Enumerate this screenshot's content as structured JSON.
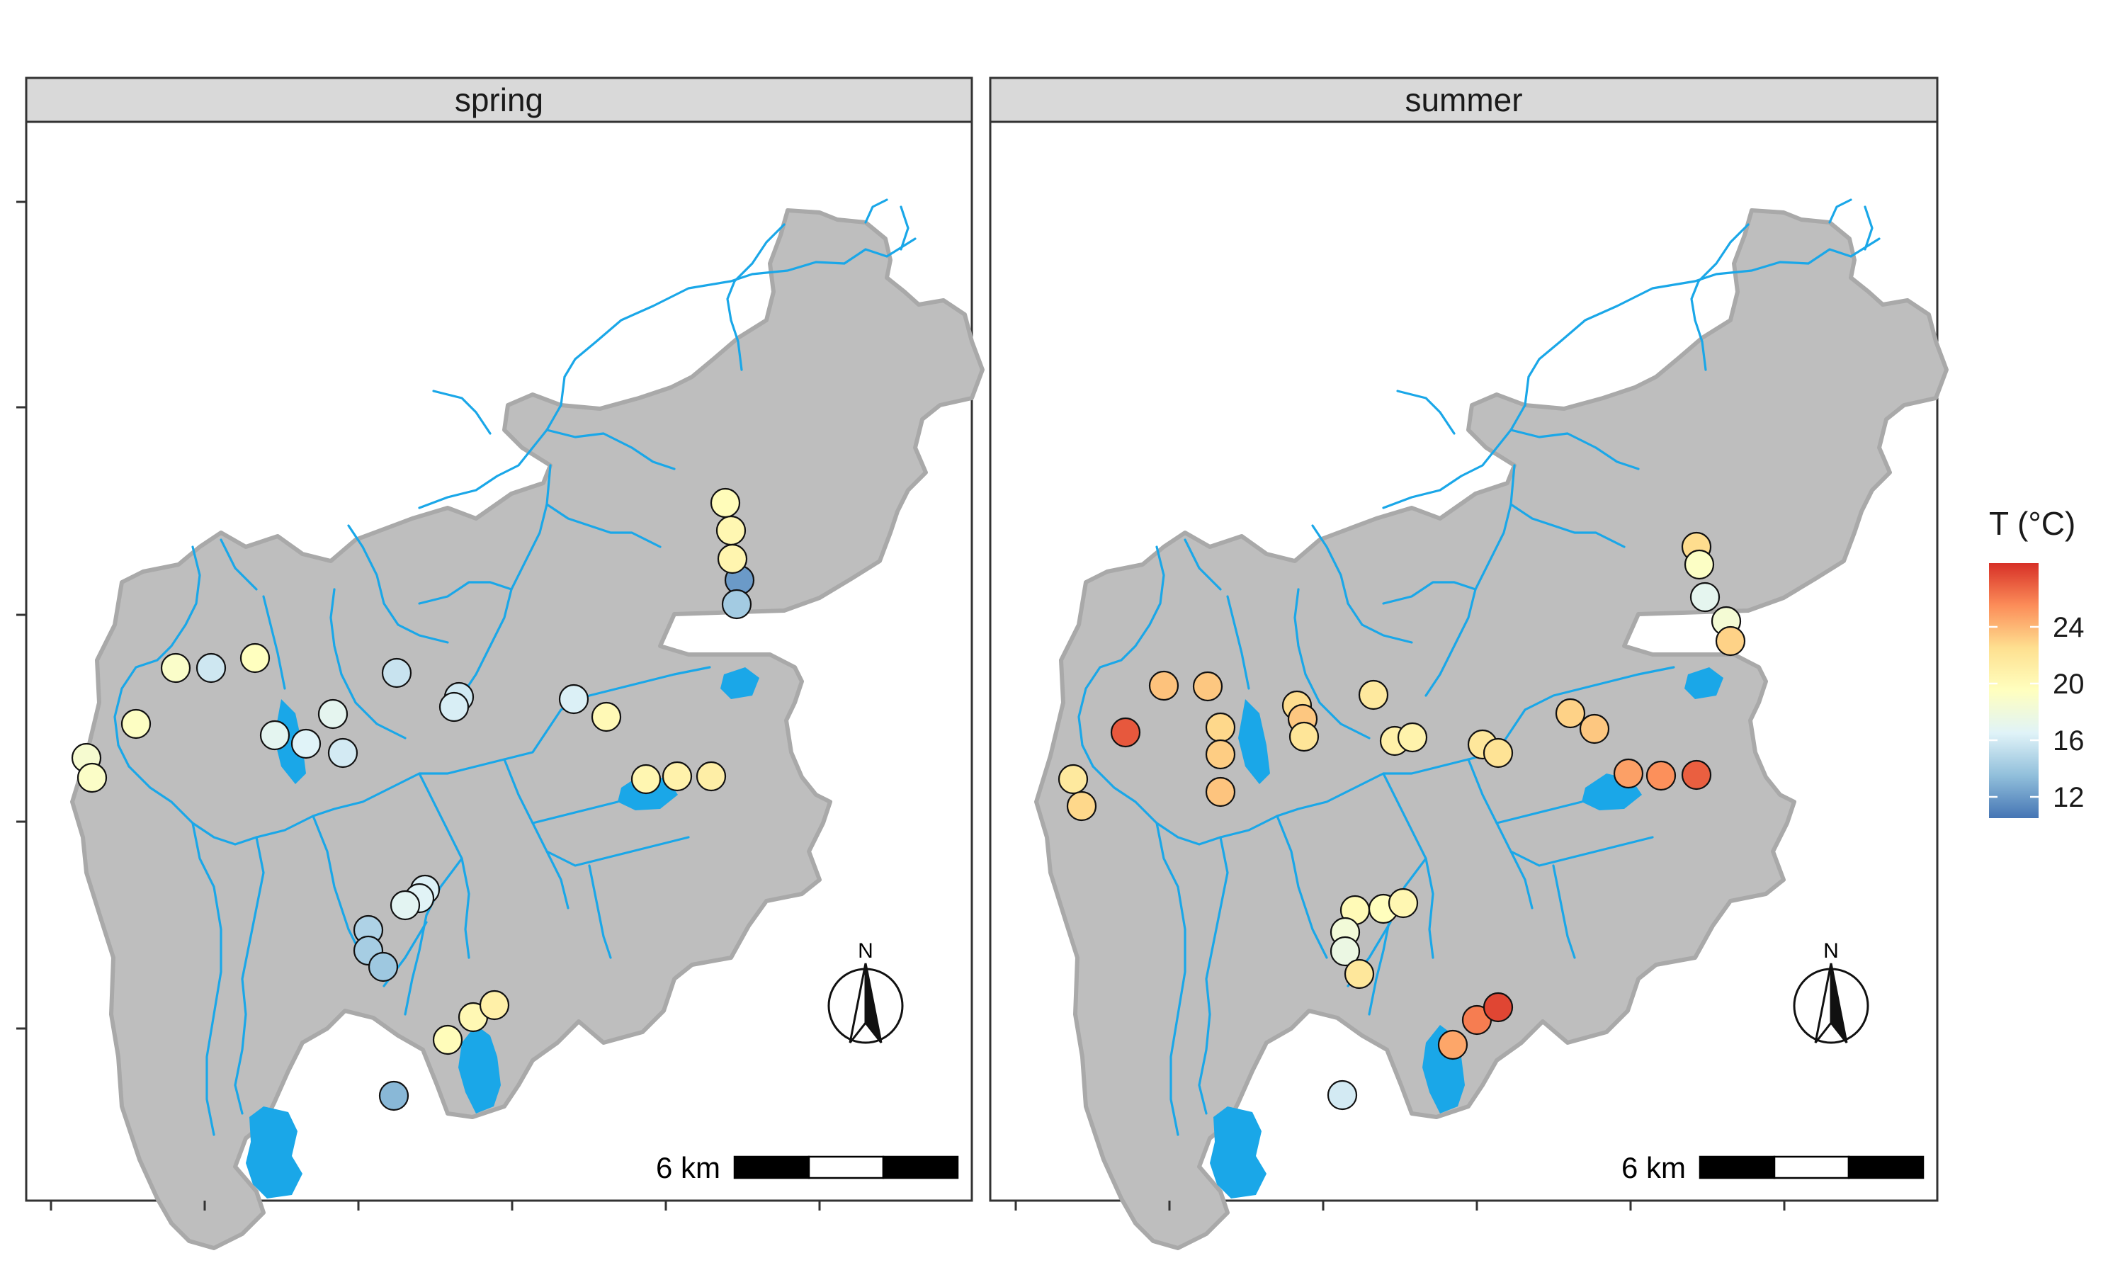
{
  "panels": [
    {
      "label": "spring",
      "sites": [
        {
          "id": 1,
          "t": 18.6
        },
        {
          "id": 2,
          "t": 19.1
        },
        {
          "id": 3,
          "t": 19.3
        },
        {
          "id": 4,
          "t": 19.0
        },
        {
          "id": 5,
          "t": 19.5
        },
        {
          "id": 6,
          "t": 12.0
        },
        {
          "id": 7,
          "t": 14.2
        },
        {
          "id": 8,
          "t": 15.8
        },
        {
          "id": 9,
          "t": 16.9
        },
        {
          "id": 10,
          "t": 16.5
        },
        {
          "id": 11,
          "t": 17.0
        },
        {
          "id": 12,
          "t": 16.0
        },
        {
          "id": 13,
          "t": 15.6
        },
        {
          "id": 14,
          "t": 15.9
        },
        {
          "id": 15,
          "t": 16.2
        },
        {
          "id": 16,
          "t": 16.3
        },
        {
          "id": 17,
          "t": 20.1
        },
        {
          "id": 18,
          "t": 20.4
        },
        {
          "id": 19,
          "t": 20.8
        },
        {
          "id": 20,
          "t": 21.1
        },
        {
          "id": 21,
          "t": 19.8
        },
        {
          "id": 22,
          "t": 20.3
        },
        {
          "id": 23,
          "t": 20.5
        },
        {
          "id": 24,
          "t": 16.4
        },
        {
          "id": 25,
          "t": 16.6
        },
        {
          "id": 26,
          "t": 16.8
        },
        {
          "id": 27,
          "t": 14.6
        },
        {
          "id": 28,
          "t": 14.3
        },
        {
          "id": 29,
          "t": 14.0
        },
        {
          "id": 30,
          "t": 19.8
        },
        {
          "id": 31,
          "t": 20.2
        },
        {
          "id": 32,
          "t": 21.0
        },
        {
          "id": 33,
          "t": 13.2
        }
      ]
    },
    {
      "label": "summer",
      "sites": [
        {
          "id": 1,
          "t": 21.6
        },
        {
          "id": 2,
          "t": 22.8
        },
        {
          "id": 3,
          "t": 27.2
        },
        {
          "id": 4,
          "t": 23.6
        },
        {
          "id": 5,
          "t": 23.4
        },
        {
          "id": 6,
          "t": 22.6
        },
        {
          "id": 7,
          "t": 19.2
        },
        {
          "id": 8,
          "t": 17.0
        },
        {
          "id": 9,
          "t": 18.4
        },
        {
          "id": 10,
          "t": 23.0
        },
        {
          "id": 11,
          "t": 22.8
        },
        {
          "id": 12,
          "t": 23.2
        },
        {
          "id": 13,
          "t": 23.5
        },
        {
          "id": 14,
          "t": 22.6
        },
        {
          "id": 15,
          "t": 23.4
        },
        {
          "id": 16,
          "t": 22.0
        },
        {
          "id": 17,
          "t": 21.6
        },
        {
          "id": 18,
          "t": 21.0
        },
        {
          "id": 19,
          "t": 20.7
        },
        {
          "id": 20,
          "t": 21.8
        },
        {
          "id": 21,
          "t": 22.2
        },
        {
          "id": 22,
          "t": 23.0
        },
        {
          "id": 23,
          "t": 23.4
        },
        {
          "id": 24,
          "t": 24.8
        },
        {
          "id": 25,
          "t": 25.4
        },
        {
          "id": 26,
          "t": 27.0
        },
        {
          "id": 27,
          "t": 20.0
        },
        {
          "id": 28,
          "t": 19.6
        },
        {
          "id": 29,
          "t": 20.3
        },
        {
          "id": 30,
          "t": 18.2
        },
        {
          "id": 31,
          "t": 17.6
        },
        {
          "id": 32,
          "t": 21.8
        },
        {
          "id": 33,
          "t": 24.6
        },
        {
          "id": 34,
          "t": 26.0
        },
        {
          "id": 35,
          "t": 27.8
        },
        {
          "id": 36,
          "t": 16.0
        }
      ]
    }
  ],
  "legend": {
    "title": "T (°C)",
    "ticks": [
      "24",
      "20",
      "16",
      "12"
    ],
    "tick_values": [
      24,
      20,
      16,
      12
    ],
    "range": [
      10.5,
      28.5
    ]
  },
  "scale_bar": {
    "label": "6 km"
  },
  "north_arrow": {
    "label": "N"
  },
  "colors": {
    "land": "#bebebe",
    "land_border": "#a9a9a9",
    "water": "#1aa7e8",
    "strip": "#d9d9d9",
    "panel_border": "#333333",
    "scale_stops": [
      "#4575b4",
      "#91bfdb",
      "#e0f3f8",
      "#ffffbf",
      "#fee090",
      "#fc8d59",
      "#d73027"
    ]
  }
}
